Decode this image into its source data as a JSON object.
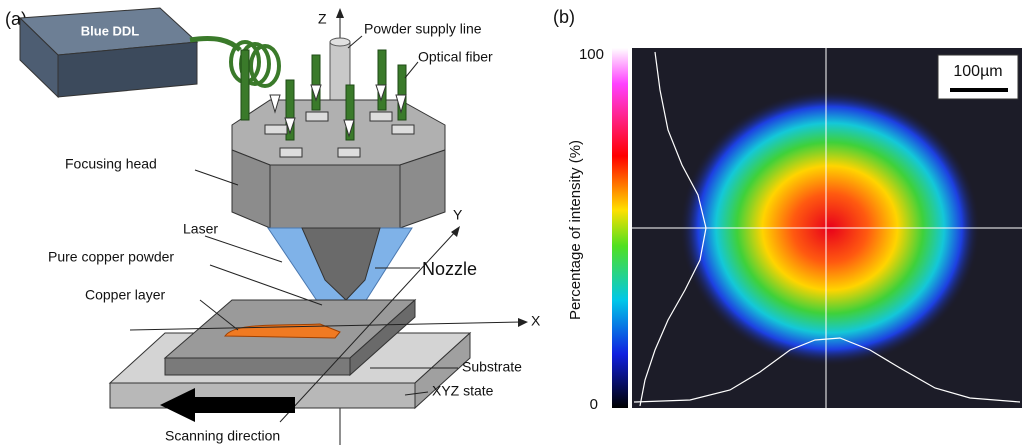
{
  "panel_a": {
    "label": "(a)",
    "source": "Blue DDL",
    "labels": {
      "z": "Z",
      "powder_supply_line": "Powder supply line",
      "optical_fiber": "Optical fiber",
      "focusing_head": "Focusing head",
      "laser": "Laser",
      "pure_copper_powder": "Pure copper powder",
      "nozzle": "Nozzle",
      "copper_layer": "Copper layer",
      "y": "Y",
      "x": "X",
      "substrate": "Substrate",
      "xyz_state": "XYZ state",
      "scanning_direction": "Scanning direction"
    }
  },
  "panel_b": {
    "label": "(b)",
    "colorbar_top": "100",
    "colorbar_bottom": "0",
    "axis_label": "Percentage of intensity (%)",
    "scale_bar": "100µm"
  }
}
